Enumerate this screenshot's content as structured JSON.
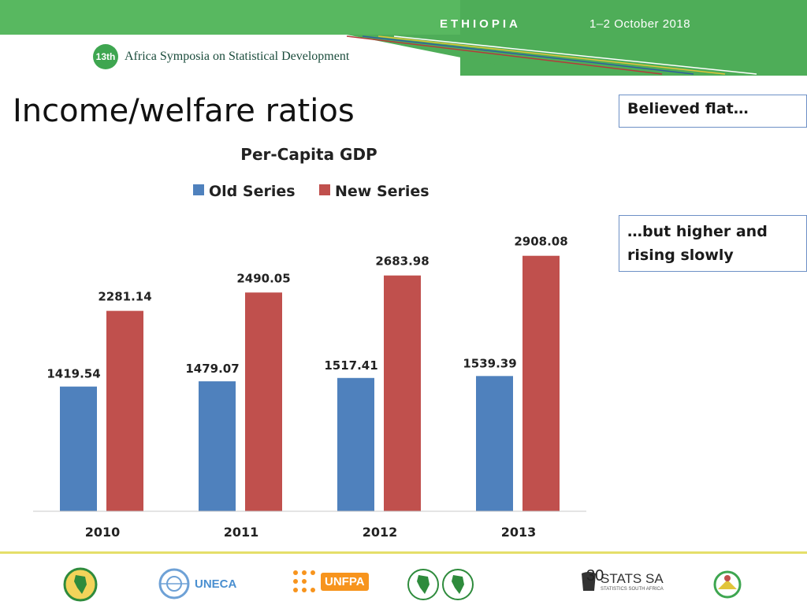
{
  "header": {
    "country": "ETHIOPIA",
    "dates": "1–2 October 2018",
    "symposium_number": "13th",
    "symposium_title": "Africa Symposia on Statistical Development"
  },
  "slide": {
    "title": "Income/welfare ratios",
    "note_top": "Believed flat…",
    "note_bottom_line1": "…but higher and",
    "note_bottom_line2": "rising slowly",
    "page_number": "30"
  },
  "colors": {
    "old_series": "#4f81bd",
    "new_series": "#c0504d",
    "header_green": "#58b860"
  },
  "chart_data": {
    "type": "bar",
    "title": "Per-Capita GDP",
    "categories": [
      "2010",
      "2011",
      "2012",
      "2013"
    ],
    "series": [
      {
        "name": "Old Series",
        "values": [
          1419.54,
          1479.07,
          1517.41,
          1539.39
        ]
      },
      {
        "name": "New Series",
        "values": [
          2281.14,
          2490.05,
          2683.98,
          2908.08
        ]
      }
    ],
    "data_labels": {
      "old": [
        "1419.54",
        "1479.07",
        "1517.41",
        "1539.39"
      ],
      "new": [
        "2281.14",
        "2490.05",
        "2683.98",
        "2908.08"
      ]
    },
    "ylim": [
      0,
      3300
    ],
    "legend": "top",
    "grid": false
  },
  "footer": {
    "uneca": "UNECA",
    "unfpa": "UNFPA",
    "stats": "STATS SA",
    "stats_sub": "STATISTICS SOUTH AFRICA"
  }
}
